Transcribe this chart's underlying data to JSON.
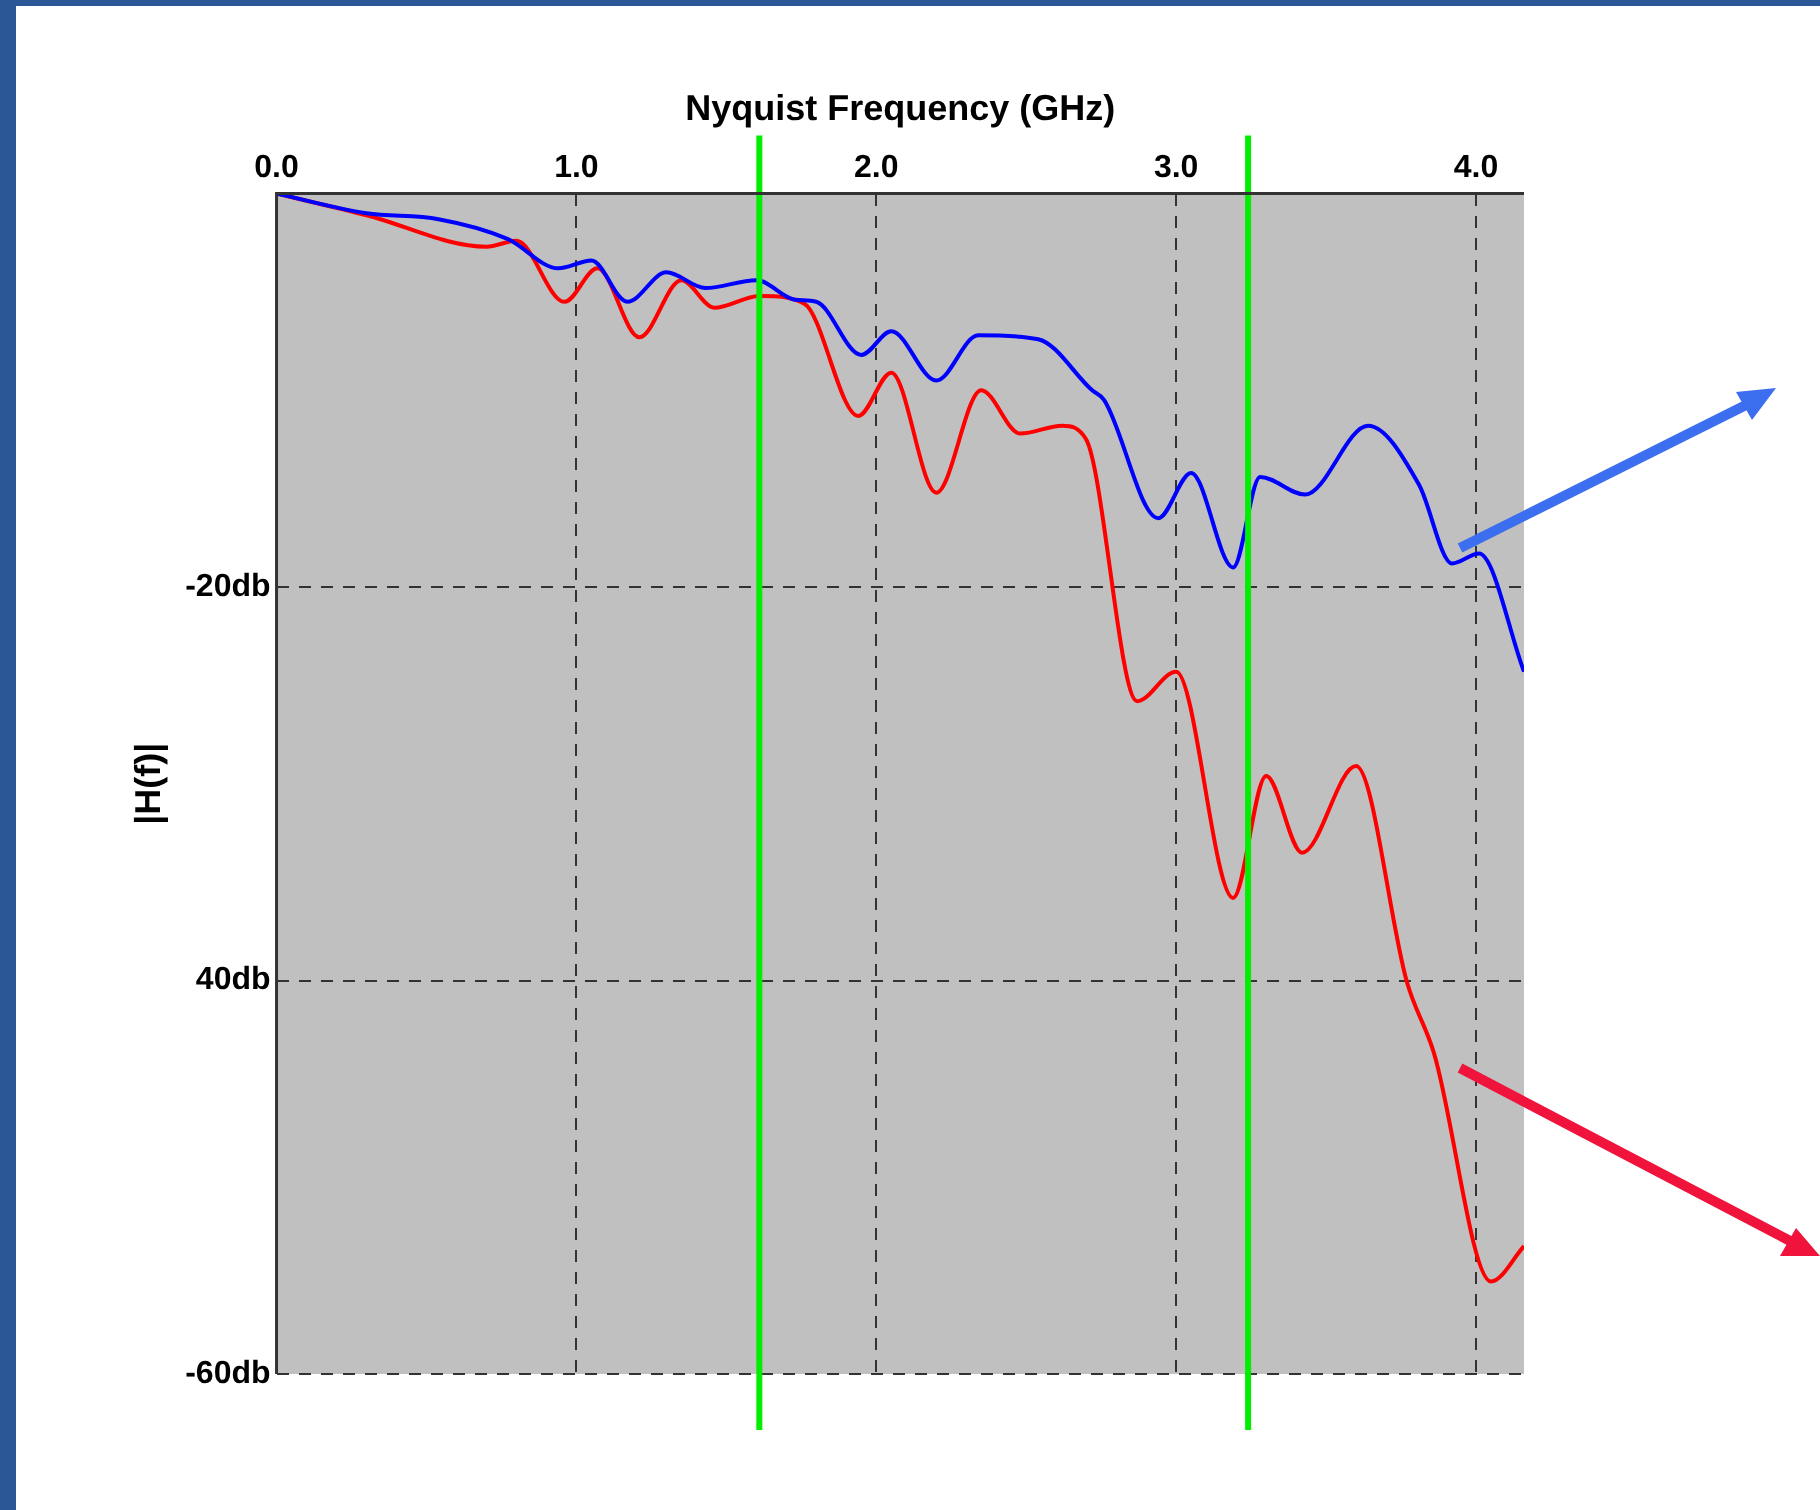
{
  "chart_data": {
    "type": "line",
    "xlabel": "Nyquist Frequency (GHz)",
    "ylabel": "|H(f)|",
    "xlim": [
      0,
      4.16
    ],
    "ylim": [
      -60,
      0
    ],
    "xticks": [
      {
        "value": 0,
        "label": "0.0"
      },
      {
        "value": 1,
        "label": "1.0"
      },
      {
        "value": 2,
        "label": "2.0"
      },
      {
        "value": 3,
        "label": "3.0"
      },
      {
        "value": 4,
        "label": "4.0"
      }
    ],
    "yticks": [
      {
        "value": 0,
        "label": null
      },
      {
        "value": -20,
        "label": "-20db"
      },
      {
        "value": -40,
        "label": "40db"
      },
      {
        "value": -60,
        "label": "-60db"
      }
    ],
    "grid": true,
    "legend": false,
    "marker": "none",
    "line_style": "solid",
    "series": [
      {
        "color": "#0000ff",
        "x": [
          0,
          0.3,
          0.54,
          0.77,
          0.94,
          1.05,
          1.17,
          1.3,
          1.43,
          1.6,
          1.73,
          1.8,
          1.95,
          2.05,
          2.2,
          2.34,
          2.54,
          2.72,
          2.76,
          2.94,
          3.05,
          3.19,
          3.28,
          3.43,
          3.64,
          3.81,
          3.92,
          4.01,
          4.16
        ],
        "values": [
          0,
          -1,
          -1.3,
          -2.3,
          -3.8,
          -3.4,
          -5.5,
          -4,
          -4.8,
          -4.4,
          -5.4,
          -5.5,
          -8.2,
          -7,
          -9.5,
          -7.2,
          -7.4,
          -10,
          -10.5,
          -16.5,
          -14.2,
          -19,
          -14.4,
          -15.3,
          -11.8,
          -14.8,
          -18.8,
          -18.3,
          -24.3
        ]
      },
      {
        "color": "#ff0000",
        "x": [
          0,
          0.3,
          0.7,
          0.8,
          0.96,
          1.07,
          1.21,
          1.35,
          1.46,
          1.61,
          1.76,
          1.94,
          2.05,
          2.2,
          2.35,
          2.48,
          2.62,
          2.7,
          2.87,
          3,
          3.19,
          3.3,
          3.42,
          3.6,
          3.77,
          3.86,
          4.05,
          4.16
        ],
        "values": [
          0,
          -1.1,
          -2.7,
          -2.4,
          -5.5,
          -3.8,
          -7.3,
          -4.4,
          -5.8,
          -5.2,
          -5.6,
          -11.3,
          -9.1,
          -15.2,
          -10,
          -12.2,
          -11.8,
          -12.5,
          -25.8,
          -24.3,
          -35.8,
          -29.6,
          -33.5,
          -29.1,
          -40.1,
          -43.7,
          -55.3,
          -53.5
        ]
      }
    ],
    "ref_lines": [
      {
        "axis": "x",
        "value": 1.61,
        "color": "#00ee00",
        "line_style": "solid"
      },
      {
        "axis": "x",
        "value": 3.24,
        "color": "#00ee00",
        "line_style": "solid"
      }
    ]
  }
}
